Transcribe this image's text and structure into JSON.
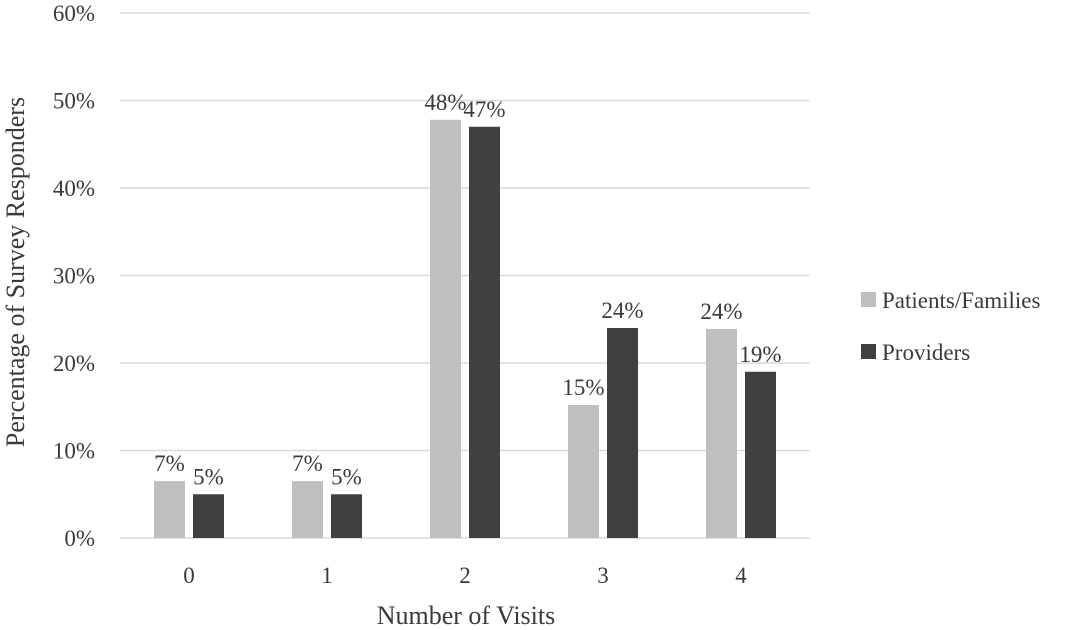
{
  "chart_data": {
    "type": "bar",
    "title": "",
    "xlabel": "Number of Visits",
    "ylabel": "Percentage of Survey Responders",
    "categories": [
      "0",
      "1",
      "2",
      "3",
      "4"
    ],
    "ylim": [
      0,
      60
    ],
    "yticks": [
      0,
      10,
      20,
      30,
      40,
      50,
      60
    ],
    "ytick_labels": [
      "0%",
      "10%",
      "20%",
      "30%",
      "40%",
      "50%",
      "60%"
    ],
    "grid": true,
    "legend_position": "right",
    "series": [
      {
        "name": "Patients/Families",
        "color": "#bfbfbf",
        "values": [
          6.5,
          6.5,
          47.8,
          15.2,
          23.9
        ],
        "labels": [
          "7%",
          "7%",
          "48%",
          "15%",
          "24%"
        ]
      },
      {
        "name": "Providers",
        "color": "#404040",
        "values": [
          5,
          5,
          47,
          24,
          19
        ],
        "labels": [
          "5%",
          "5%",
          "47%",
          "24%",
          "19%"
        ]
      }
    ]
  }
}
